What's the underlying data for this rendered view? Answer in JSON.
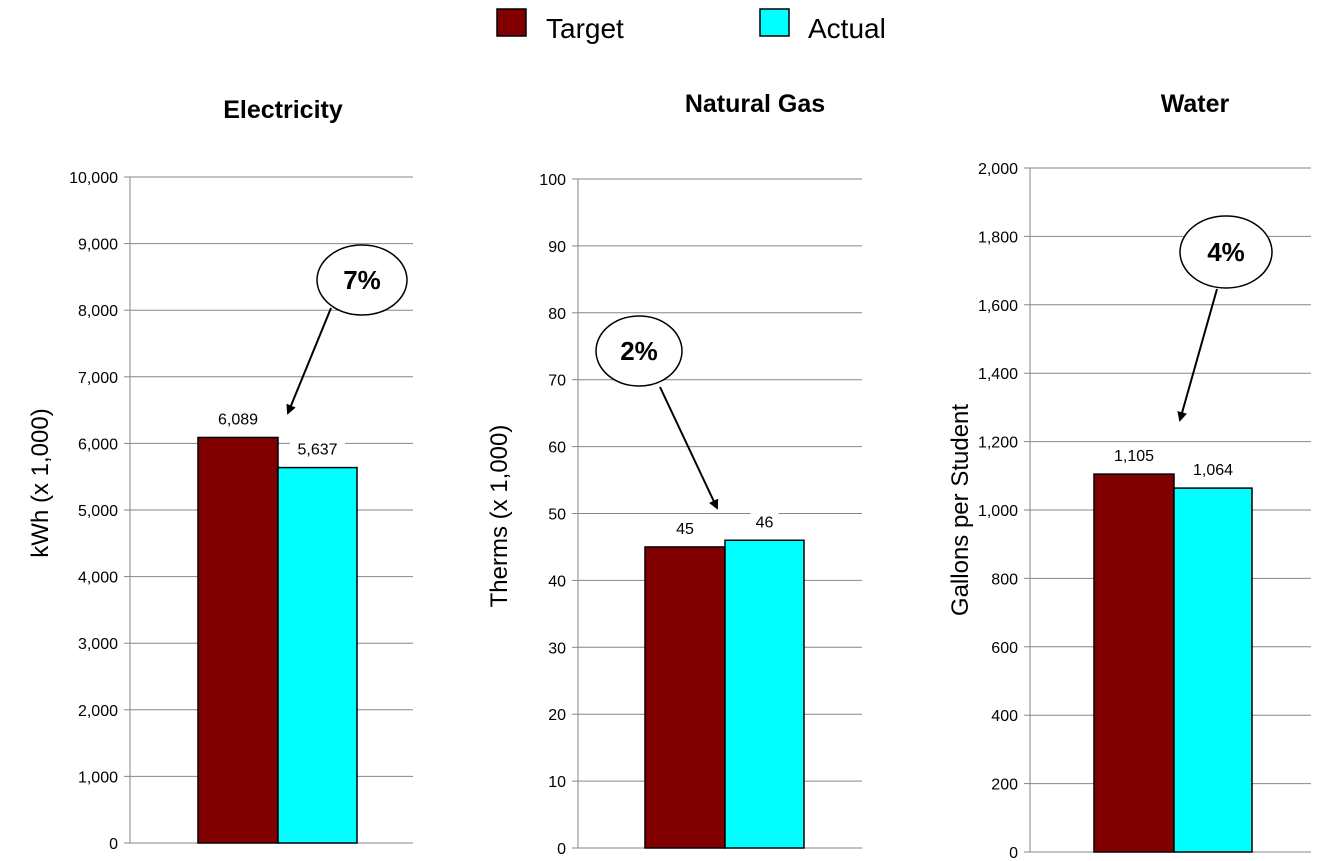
{
  "legend": {
    "items": [
      {
        "label": "Target",
        "color": "#800000"
      },
      {
        "label": "Actual",
        "color": "#00ffff"
      }
    ]
  },
  "chart_data": [
    {
      "type": "bar",
      "title": "Electricity",
      "ylabel": "kWh (x 1,000)",
      "ylim": [
        0,
        10000
      ],
      "yticks": [
        "0",
        "1,000",
        "2,000",
        "3,000",
        "4,000",
        "5,000",
        "6,000",
        "7,000",
        "8,000",
        "9,000",
        "10,000"
      ],
      "grid": true,
      "series": [
        {
          "name": "Target",
          "color": "#800000",
          "values": [
            6089
          ],
          "data_label": "6,089"
        },
        {
          "name": "Actual",
          "color": "#00ffff",
          "values": [
            5637
          ],
          "data_label": "5,637"
        }
      ],
      "annotation": "7%"
    },
    {
      "type": "bar",
      "title": "Natural Gas",
      "ylabel": "Therms (x 1,000)",
      "ylim": [
        0,
        100
      ],
      "yticks": [
        "0",
        "10",
        "20",
        "30",
        "40",
        "50",
        "60",
        "70",
        "80",
        "90",
        "100"
      ],
      "grid": true,
      "series": [
        {
          "name": "Target",
          "color": "#800000",
          "values": [
            45
          ],
          "data_label": "45"
        },
        {
          "name": "Actual",
          "color": "#00ffff",
          "values": [
            46
          ],
          "data_label": "46"
        }
      ],
      "annotation": "2%"
    },
    {
      "type": "bar",
      "title": "Water",
      "ylabel": "Gallons per Student",
      "ylim": [
        0,
        2000
      ],
      "yticks": [
        "0",
        "200",
        "400",
        "600",
        "800",
        "1,000",
        "1,200",
        "1,400",
        "1,600",
        "1,800",
        "2,000"
      ],
      "grid": true,
      "series": [
        {
          "name": "Target",
          "color": "#800000",
          "values": [
            1105
          ],
          "data_label": "1,105"
        },
        {
          "name": "Actual",
          "color": "#00ffff",
          "values": [
            1064
          ],
          "data_label": "1,064"
        }
      ],
      "annotation": "4%"
    }
  ]
}
